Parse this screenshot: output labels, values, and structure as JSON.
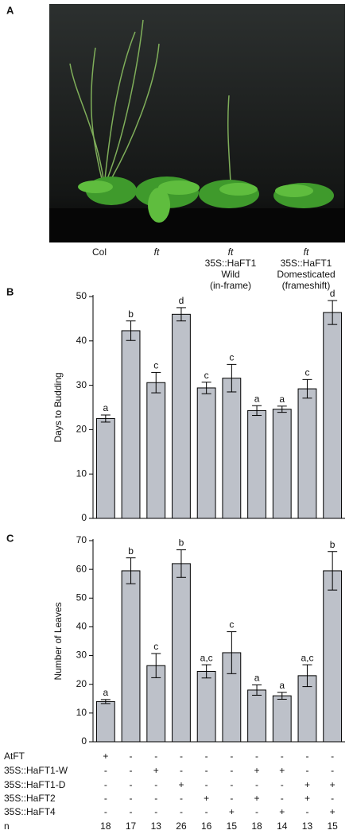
{
  "panel_labels": [
    "A",
    "B",
    "C"
  ],
  "photo_labels": [
    [
      "Col"
    ],
    [
      "ft"
    ],
    [
      "ft",
      "35S::HaFT1",
      "Wild",
      "(in-frame)"
    ],
    [
      "ft",
      "35S::HaFT1",
      "Domesticated",
      "(frameshift)"
    ]
  ],
  "chart_data": [
    {
      "type": "bar",
      "y_label": "Days to Budding",
      "values": [
        22.5,
        42.3,
        30.6,
        46,
        29.4,
        31.6,
        24.3,
        24.6,
        29.2,
        46.4
      ],
      "errors": [
        0.8,
        2.2,
        2.3,
        1.5,
        1.3,
        3.1,
        1.1,
        0.7,
        2.1,
        2.7
      ],
      "annotations": [
        "a",
        "b",
        "c",
        "d",
        "c",
        "c",
        "a",
        "a",
        "c",
        "d"
      ],
      "color": "#bdc1c9",
      "ylim": [
        0,
        50
      ],
      "yticks": [
        0,
        10,
        20,
        30,
        40,
        50
      ]
    },
    {
      "type": "bar",
      "y_label": "Number of Leaves",
      "values": [
        14,
        59.5,
        26.5,
        62,
        24.5,
        31,
        18,
        16,
        23,
        59.5
      ],
      "errors": [
        0.7,
        4.5,
        4.2,
        4.8,
        2.3,
        7.3,
        1.8,
        1.2,
        3.8,
        6.7
      ],
      "annotations": [
        "a",
        "b",
        "c",
        "b",
        "a,c",
        "c",
        "a",
        "a",
        "a,c",
        "b"
      ],
      "color": "#bdc1c9",
      "ylim": [
        0,
        70
      ],
      "yticks": [
        0,
        10,
        20,
        30,
        40,
        50,
        60,
        70
      ]
    }
  ],
  "genotype_table": {
    "row_labels": [
      "AtFT",
      "35S::HaFT1-W",
      "35S::HaFT1-D",
      "35S::HaFT2",
      "35S::HaFT4",
      "n"
    ],
    "rows": [
      [
        "+",
        "-",
        "-",
        "-",
        "-",
        "-",
        "-",
        "-",
        "-",
        "-"
      ],
      [
        "-",
        "-",
        "+",
        "-",
        "-",
        "-",
        "+",
        "+",
        "-",
        "-"
      ],
      [
        "-",
        "-",
        "-",
        "+",
        "-",
        "-",
        "-",
        "-",
        "+",
        "+"
      ],
      [
        "-",
        "-",
        "-",
        "-",
        "+",
        "-",
        "+",
        "-",
        "+",
        "-"
      ],
      [
        "-",
        "-",
        "-",
        "-",
        "-",
        "+",
        "-",
        "+",
        "-",
        "+"
      ],
      [
        "18",
        "17",
        "13",
        "26",
        "16",
        "15",
        "18",
        "14",
        "13",
        "15"
      ]
    ]
  }
}
